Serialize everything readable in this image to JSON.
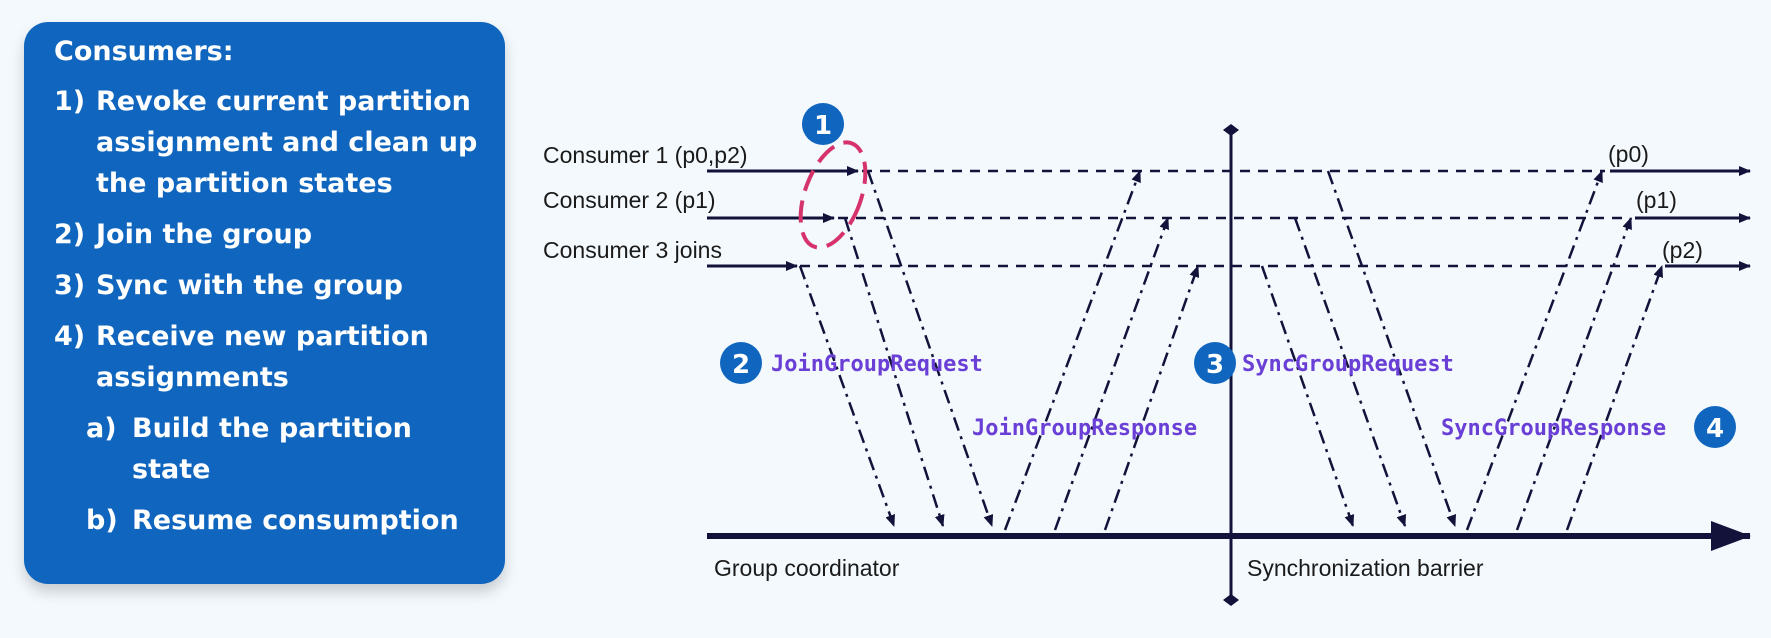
{
  "panel": {
    "title": "Consumers:",
    "steps": [
      {
        "num": "1)",
        "text": "Revoke current partition assignment and clean up the partition states"
      },
      {
        "num": "2)",
        "text": "Join the group"
      },
      {
        "num": "3)",
        "text": "Sync with the group"
      },
      {
        "num": "4)",
        "text": "Receive new partition assignments"
      }
    ],
    "substeps": [
      {
        "num": "a)",
        "text": "Build the partition state"
      },
      {
        "num": "b)",
        "text": "Resume consumption"
      }
    ]
  },
  "diagram": {
    "consumers": [
      {
        "label": "Consumer 1 (p0,p2)",
        "assignment": "(p0)"
      },
      {
        "label": "Consumer 2 (p1)",
        "assignment": "(p1)"
      },
      {
        "label": "Consumer 3 joins",
        "assignment": "(p2)"
      }
    ],
    "coordinator_label": "Group coordinator",
    "barrier_label": "Synchronization barrier",
    "messages": {
      "join_request": "JoinGroupRequest",
      "join_response": "JoinGroupResponse",
      "sync_request": "SyncGroupRequest",
      "sync_response": "SyncGroupResponse"
    },
    "badges": [
      "1",
      "2",
      "3",
      "4"
    ],
    "colors": {
      "panel": "#1066be",
      "badge": "#1066be",
      "line": "#12123a",
      "highlight": "#d6336c",
      "message_text": "#6a3fd6"
    }
  }
}
